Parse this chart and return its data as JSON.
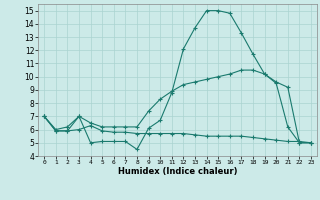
{
  "title": "",
  "xlabel": "Humidex (Indice chaleur)",
  "bg_color": "#cceae8",
  "line_color": "#1a7a6e",
  "grid_color": "#aad4d0",
  "xlim": [
    -0.5,
    23.5
  ],
  "ylim": [
    4,
    15.5
  ],
  "xticks": [
    0,
    1,
    2,
    3,
    4,
    5,
    6,
    7,
    8,
    9,
    10,
    11,
    12,
    13,
    14,
    15,
    16,
    17,
    18,
    19,
    20,
    21,
    22,
    23
  ],
  "yticks": [
    4,
    5,
    6,
    7,
    8,
    9,
    10,
    11,
    12,
    13,
    14,
    15
  ],
  "line1_x": [
    0,
    1,
    2,
    3,
    4,
    5,
    6,
    7,
    8,
    9,
    10,
    11,
    12,
    13,
    14,
    15,
    16,
    17,
    18,
    19,
    20,
    21,
    22,
    23
  ],
  "line1_y": [
    7.0,
    5.9,
    5.9,
    7.0,
    5.0,
    5.1,
    5.1,
    5.1,
    4.5,
    6.1,
    6.7,
    8.8,
    12.1,
    13.7,
    15.0,
    15.0,
    14.8,
    13.3,
    11.7,
    10.2,
    9.5,
    6.2,
    5.0,
    5.0
  ],
  "line2_x": [
    0,
    1,
    2,
    3,
    4,
    5,
    6,
    7,
    8,
    9,
    10,
    11,
    12,
    13,
    14,
    15,
    16,
    17,
    18,
    19,
    20,
    21,
    22,
    23
  ],
  "line2_y": [
    7.0,
    6.0,
    6.2,
    7.0,
    6.5,
    6.2,
    6.2,
    6.2,
    6.2,
    7.4,
    8.3,
    8.9,
    9.4,
    9.6,
    9.8,
    10.0,
    10.2,
    10.5,
    10.5,
    10.2,
    9.6,
    9.2,
    5.0,
    5.0
  ],
  "line3_x": [
    0,
    1,
    2,
    3,
    4,
    5,
    6,
    7,
    8,
    9,
    10,
    11,
    12,
    13,
    14,
    15,
    16,
    17,
    18,
    19,
    20,
    21,
    22,
    23
  ],
  "line3_y": [
    7.0,
    5.9,
    5.9,
    6.0,
    6.3,
    5.9,
    5.8,
    5.8,
    5.7,
    5.7,
    5.7,
    5.7,
    5.7,
    5.6,
    5.5,
    5.5,
    5.5,
    5.5,
    5.4,
    5.3,
    5.2,
    5.1,
    5.1,
    5.0
  ]
}
